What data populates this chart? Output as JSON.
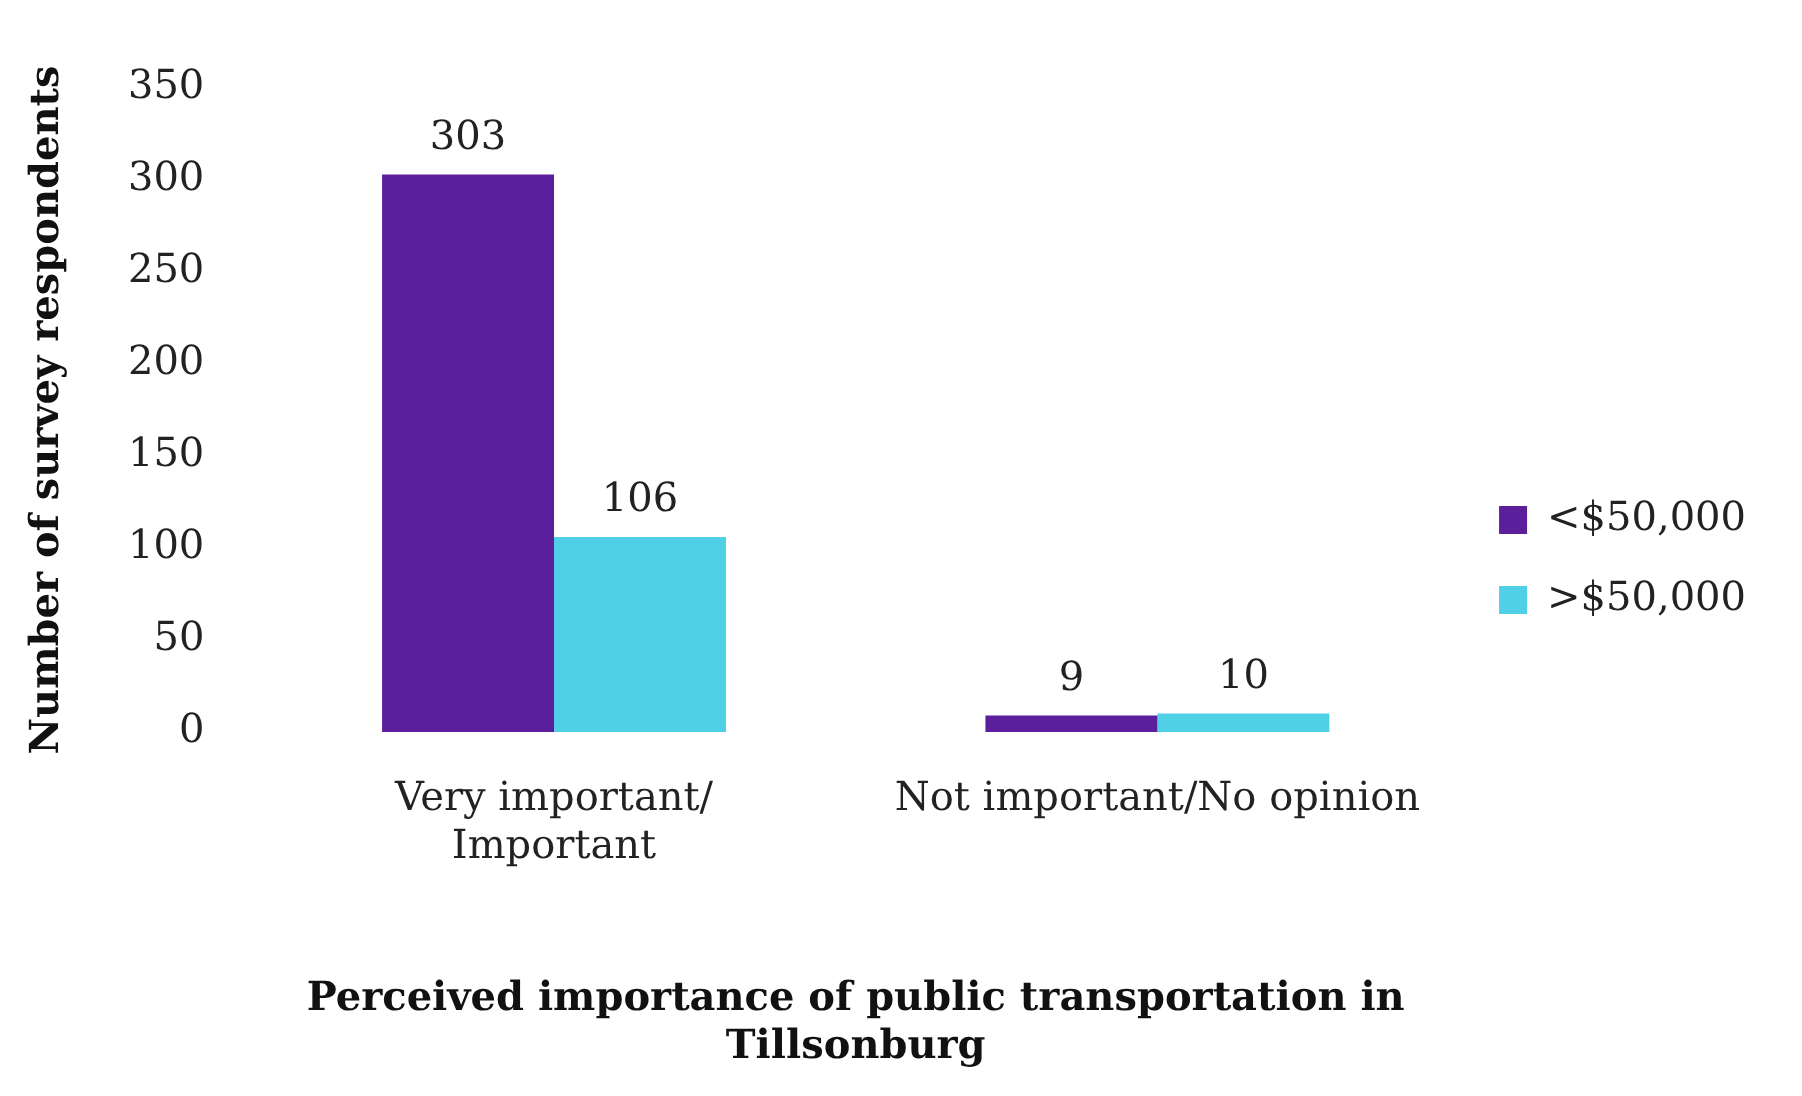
{
  "chart_data": {
    "type": "bar",
    "xlabel": "Perceived importance of public transportation in Tillsonburg",
    "ylabel": "Number of survey respondents",
    "categories": [
      "Very important/ Important",
      "Not important/No opinion"
    ],
    "series": [
      {
        "name": "<$50,000",
        "color": "#5b1f9c",
        "values": [
          303,
          9
        ]
      },
      {
        "name": ">$50,000",
        "color": "#4fd0e6",
        "values": [
          106,
          10
        ]
      }
    ],
    "ylim": [
      0,
      350
    ],
    "yticks": [
      0,
      50,
      100,
      150,
      200,
      250,
      300,
      350
    ],
    "grid": false,
    "legend": "right",
    "data_labels": true
  }
}
